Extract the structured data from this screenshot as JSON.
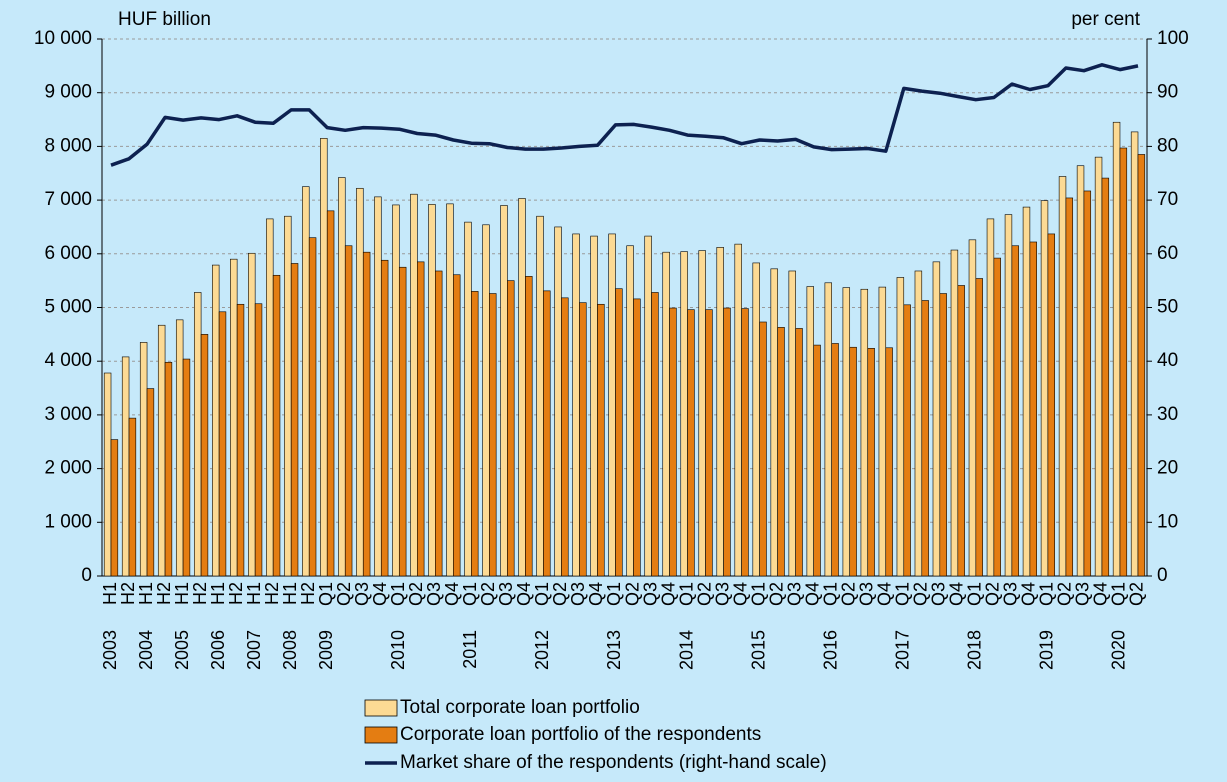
{
  "chart_data": {
    "type": "bar",
    "y_title": "HUF billion",
    "y2_title": "per cent",
    "categories": [
      "H1",
      "H2",
      "H1",
      "H2",
      "H1",
      "H2",
      "H1",
      "H2",
      "H1",
      "H2",
      "H1",
      "H2",
      "Q1",
      "Q2",
      "Q3",
      "Q4",
      "Q1",
      "Q2",
      "Q3",
      "Q4",
      "Q1",
      "Q2",
      "Q3",
      "Q4",
      "Q1",
      "Q2",
      "Q3",
      "Q4",
      "Q1",
      "Q2",
      "Q3",
      "Q4",
      "Q1",
      "Q2",
      "Q3",
      "Q4",
      "Q1",
      "Q2",
      "Q3",
      "Q4",
      "Q1",
      "Q2",
      "Q3",
      "Q4",
      "Q1",
      "Q2",
      "Q3",
      "Q4",
      "Q1",
      "Q2",
      "Q3",
      "Q4",
      "Q1",
      "Q2",
      "Q3",
      "Q4",
      "Q1",
      "Q2"
    ],
    "year_labels": [
      "2003",
      null,
      "2004",
      null,
      "2005",
      null,
      "2006",
      null,
      "2007",
      null,
      "2008",
      null,
      "2009",
      null,
      null,
      null,
      "2010",
      null,
      null,
      null,
      "2011",
      null,
      null,
      null,
      "2012",
      null,
      null,
      null,
      "2013",
      null,
      null,
      null,
      "2014",
      null,
      null,
      null,
      "2015",
      null,
      null,
      null,
      "2016",
      null,
      null,
      null,
      "2017",
      null,
      null,
      null,
      "2018",
      null,
      null,
      null,
      "2019",
      null,
      null,
      null,
      "2020",
      null
    ],
    "series": [
      {
        "name": "Total corporate loan portfolio",
        "type": "bar",
        "color": "#fcda94",
        "values": [
          3780,
          4080,
          4350,
          4670,
          4770,
          5280,
          5790,
          5900,
          6010,
          6650,
          6700,
          7250,
          8150,
          7420,
          7220,
          7060,
          6910,
          7110,
          6920,
          6930,
          6590,
          6540,
          6900,
          7030,
          6700,
          6500,
          6370,
          6330,
          6370,
          6150,
          6330,
          6030,
          6040,
          6060,
          6120,
          6180,
          5830,
          5720,
          5680,
          5390,
          5460,
          5370,
          5340,
          5380,
          5560,
          5680,
          5850,
          6070,
          6260,
          6650,
          6730,
          6870,
          6990,
          7440,
          7640,
          7800,
          8450,
          8270
        ]
      },
      {
        "name": "Corporate loan portfolio of the respondents",
        "type": "bar",
        "color": "#e47d12",
        "values": [
          2540,
          2940,
          3490,
          3980,
          4040,
          4500,
          4920,
          5060,
          5070,
          5600,
          5820,
          6300,
          6800,
          6150,
          6030,
          5880,
          5750,
          5850,
          5680,
          5610,
          5300,
          5260,
          5500,
          5580,
          5310,
          5180,
          5090,
          5060,
          5350,
          5160,
          5280,
          4990,
          4960,
          4960,
          4990,
          4980,
          4730,
          4630,
          4610,
          4300,
          4330,
          4260,
          4240,
          4250,
          5050,
          5130,
          5260,
          5410,
          5540,
          5920,
          6150,
          6220,
          6370,
          7040,
          7170,
          7410,
          7970,
          7850
        ]
      },
      {
        "name": "Market share of the respondents (right-hand scale)",
        "type": "line",
        "axis": "y2",
        "color": "#0d2150",
        "values": [
          76.5,
          77.7,
          80.4,
          85.4,
          84.9,
          85.3,
          85.0,
          85.7,
          84.5,
          84.3,
          86.8,
          86.8,
          83.5,
          83.0,
          83.5,
          83.4,
          83.2,
          82.4,
          82.1,
          81.2,
          80.6,
          80.5,
          79.8,
          79.5,
          79.5,
          79.7,
          80.0,
          80.2,
          84.0,
          84.1,
          83.6,
          83.0,
          82.1,
          81.9,
          81.6,
          80.5,
          81.2,
          81.0,
          81.3,
          79.9,
          79.4,
          79.5,
          79.6,
          79.1,
          90.8,
          90.3,
          89.9,
          89.3,
          88.7,
          89.1,
          91.6,
          90.6,
          91.3,
          94.6,
          94.1,
          95.2,
          94.3,
          95.0
        ]
      }
    ],
    "ylim": [
      0,
      10000
    ],
    "yticks": [
      0,
      {
        "value": 1000,
        "label": "1 000"
      },
      {
        "value": 2000,
        "label": "2 000"
      },
      {
        "value": 3000,
        "label": "3 000"
      },
      {
        "value": 4000,
        "label": "4 000"
      },
      {
        "value": 5000,
        "label": "5 000"
      },
      {
        "value": 6000,
        "label": "6 000"
      },
      {
        "value": 7000,
        "label": "7 000"
      },
      {
        "value": 8000,
        "label": "8 000"
      },
      {
        "value": 9000,
        "label": "9 000"
      },
      {
        "value": 10000,
        "label": "10 000"
      }
    ],
    "y2lim": [
      0,
      100
    ],
    "y2ticks": [
      0,
      10,
      20,
      30,
      40,
      50,
      60,
      70,
      80,
      90,
      100
    ],
    "grid": true
  }
}
